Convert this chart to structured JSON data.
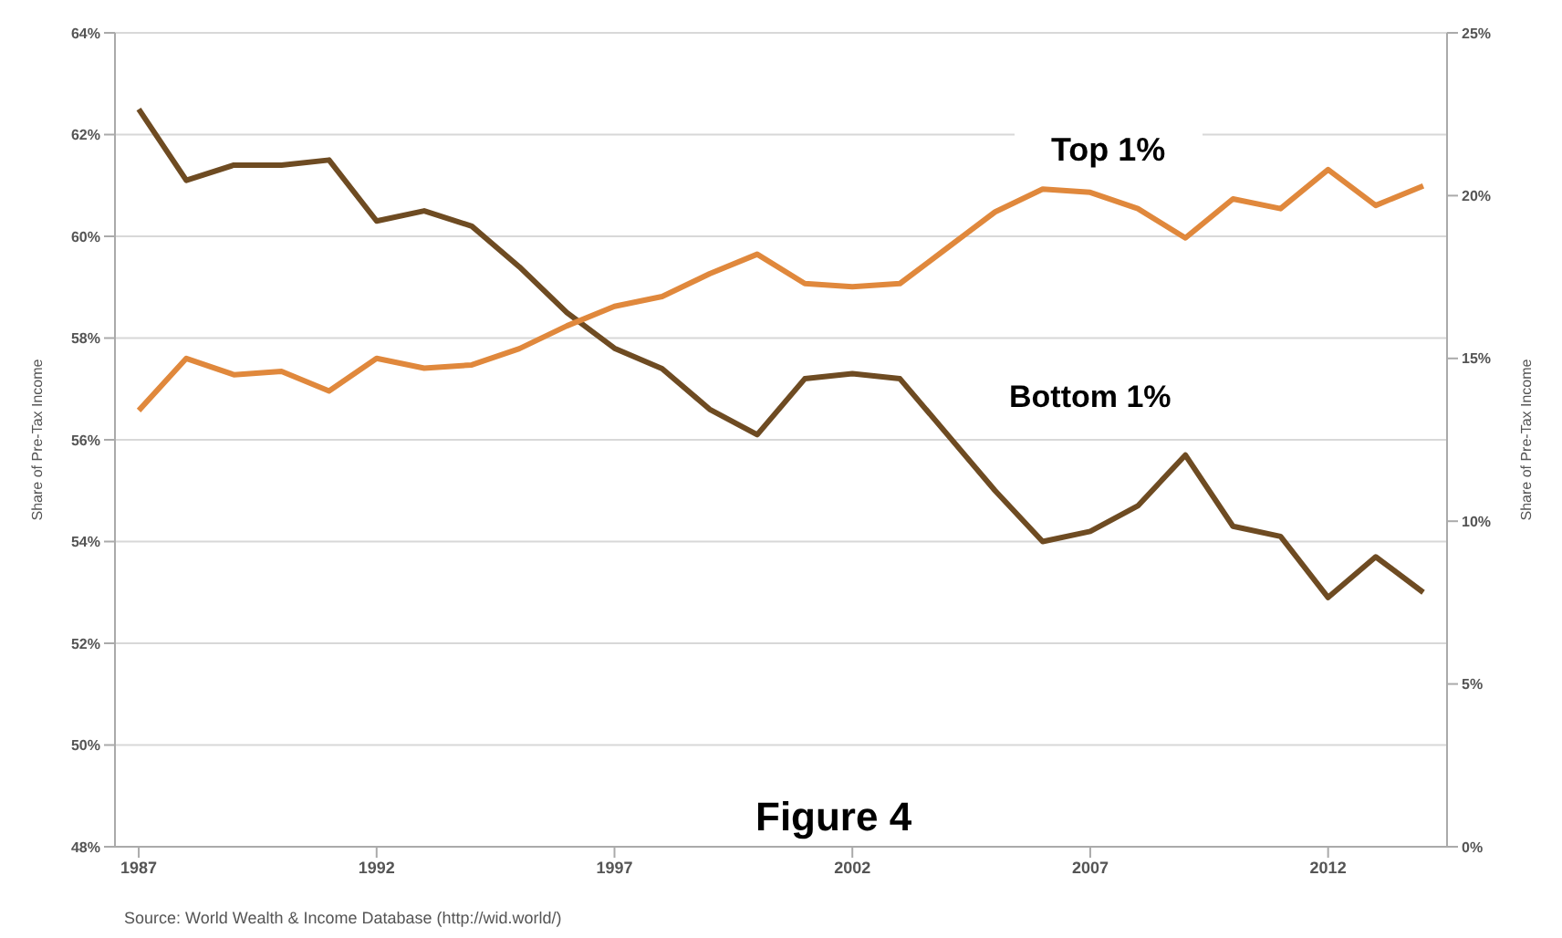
{
  "chart_data": {
    "type": "line",
    "ylabel": "Share of Pre-Tax Income",
    "y2label": "Share of Pre-Tax Income",
    "x": [
      1987,
      1988,
      1989,
      1990,
      1991,
      1992,
      1993,
      1994,
      1995,
      1996,
      1997,
      1998,
      1999,
      2000,
      2001,
      2002,
      2003,
      2004,
      2005,
      2006,
      2007,
      2008,
      2009,
      2010,
      2011,
      2012,
      2013,
      2014
    ],
    "series": [
      {
        "color": "#6e4b22",
        "values": [
          62.5,
          61.1,
          61.4,
          61.4,
          61.5,
          60.3,
          60.5,
          60.2,
          59.4,
          58.5,
          57.8,
          57.4,
          56.6,
          56.1,
          57.2,
          57.3,
          57.2,
          56.1,
          55.0,
          54.0,
          54.2,
          54.7,
          55.7,
          54.3,
          54.1,
          52.9,
          53.7,
          53.0
        ]
      },
      {
        "color": "#e0883c",
        "axis": "y2",
        "values": [
          13.4,
          15.0,
          14.5,
          14.6,
          14.0,
          15.0,
          14.7,
          14.8,
          15.3,
          16.0,
          16.6,
          16.9,
          17.6,
          18.2,
          17.3,
          17.2,
          17.3,
          18.4,
          19.5,
          20.2,
          20.1,
          19.6,
          18.7,
          19.9,
          19.6,
          20.8,
          19.7,
          20.3
        ]
      }
    ],
    "xlim": [
      1986.5,
      2014.5
    ],
    "xticks": [
      1987,
      1992,
      1997,
      2002,
      2007,
      2012
    ],
    "ylim": [
      48,
      64
    ],
    "yticks": [
      {
        "value": 48,
        "label": "48%"
      },
      {
        "value": 50,
        "label": "50%"
      },
      {
        "value": 52,
        "label": "52%"
      },
      {
        "value": 54,
        "label": "54%"
      },
      {
        "value": 56,
        "label": "56%"
      },
      {
        "value": 58,
        "label": "58%"
      },
      {
        "value": 60,
        "label": "60%"
      },
      {
        "value": 62,
        "label": "62%"
      },
      {
        "value": 64,
        "label": "64%"
      }
    ],
    "y2lim": [
      0,
      25
    ],
    "y2ticks": [
      {
        "value": 0,
        "label": "0%"
      },
      {
        "value": 5,
        "label": "5%"
      },
      {
        "value": 10,
        "label": "10%"
      },
      {
        "value": 15,
        "label": "15%"
      },
      {
        "value": 20,
        "label": "20%"
      },
      {
        "value": 25,
        "label": "25%"
      }
    ],
    "grid": "y",
    "legend": false,
    "marker": "none",
    "line_style": "solid",
    "annotations": [
      "Top 1%",
      "Bottom 1%",
      "Figure 4",
      "Source: World Wealth & Income Database (http://wid.world/)"
    ]
  }
}
